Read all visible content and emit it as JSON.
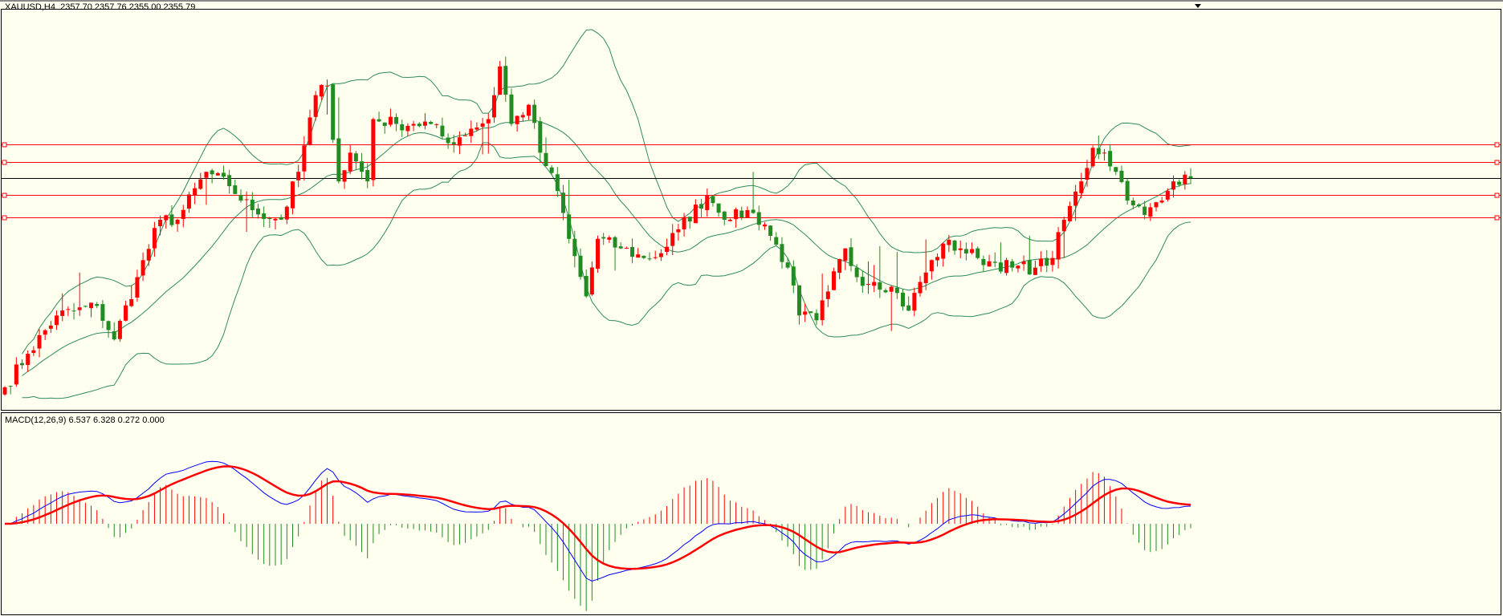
{
  "header": {
    "symbol": "XAUUSD,H4",
    "ohlc": "2357.70 2357.76 2355.00 2355.79"
  },
  "macd_panel": {
    "label": "MACD(12,26,9) 6.537 6.328 0.272 0.000"
  },
  "colors": {
    "background": "#fffff0",
    "bull": "#ff0000",
    "bear": "#228b22",
    "bands": "#2e8b57",
    "macd": "#0000ff",
    "signal": "#ff0000",
    "hline": "#ff0000",
    "bidline": "#000000"
  },
  "chart_data": [
    {
      "type": "candlestick",
      "title": "XAUUSD,H4",
      "indicators": [
        "Bollinger Bands(20,2)"
      ],
      "last_close": 2355.79,
      "horizontal_lines": [
        2369.9,
        2362.5,
        2348.8,
        2339.4
      ],
      "bid_line": 2355.79,
      "close_anchors": [
        [
          0,
          2268.4
        ],
        [
          4,
          2282.4
        ],
        [
          9,
          2298.4
        ],
        [
          16,
          2302.4
        ],
        [
          19,
          2288.4
        ],
        [
          23,
          2314.4
        ],
        [
          27,
          2338.4
        ],
        [
          30,
          2338.4
        ],
        [
          35,
          2358.4
        ],
        [
          39,
          2352.4
        ],
        [
          43,
          2342.4
        ],
        [
          48,
          2338.4
        ],
        [
          51,
          2358.4
        ],
        [
          54,
          2390.4
        ],
        [
          56,
          2394.4
        ],
        [
          58,
          2354.4
        ],
        [
          60,
          2366.4
        ],
        [
          63,
          2354.4
        ],
        [
          64,
          2380.4
        ],
        [
          68,
          2378.4
        ],
        [
          71,
          2378.4
        ],
        [
          74,
          2378.4
        ],
        [
          77,
          2370.4
        ],
        [
          81,
          2376.4
        ],
        [
          84,
          2380.4
        ],
        [
          86,
          2402.4
        ],
        [
          88,
          2378.4
        ],
        [
          91,
          2386.4
        ],
        [
          93,
          2366.4
        ],
        [
          96,
          2350.4
        ],
        [
          98,
          2330.4
        ],
        [
          101,
          2306.4
        ],
        [
          103,
          2330.4
        ],
        [
          107,
          2326.4
        ],
        [
          111,
          2322.4
        ],
        [
          114,
          2324.4
        ],
        [
          117,
          2334.4
        ],
        [
          122,
          2348.4
        ],
        [
          126,
          2338.4
        ],
        [
          129,
          2342.4
        ],
        [
          132,
          2336.4
        ],
        [
          136,
          2318.4
        ],
        [
          138,
          2298.4
        ],
        [
          141,
          2296.4
        ],
        [
          143,
          2308.4
        ],
        [
          146,
          2326.4
        ],
        [
          148,
          2314.4
        ],
        [
          151,
          2312.4
        ],
        [
          154,
          2310.4
        ],
        [
          157,
          2300.4
        ],
        [
          159,
          2312.4
        ],
        [
          163,
          2328.4
        ],
        [
          166,
          2326.4
        ],
        [
          169,
          2322.4
        ],
        [
          172,
          2320.4
        ],
        [
          175,
          2318.4
        ],
        [
          179,
          2318.4
        ],
        [
          182,
          2322.4
        ],
        [
          184,
          2338.4
        ],
        [
          187,
          2354.4
        ],
        [
          189,
          2368.4
        ],
        [
          191,
          2366.4
        ],
        [
          193,
          2358.4
        ],
        [
          196,
          2344.4
        ],
        [
          198,
          2340.4
        ],
        [
          201,
          2346.4
        ],
        [
          203,
          2354.4
        ],
        [
          205,
          2357.2
        ],
        [
          206,
          2355.79
        ]
      ]
    },
    {
      "type": "line",
      "title": "MACD(12,26,9)",
      "values": {
        "macd": 6.537,
        "signal": 6.328,
        "histogram": 0.272,
        "extra": 0.0
      }
    }
  ]
}
